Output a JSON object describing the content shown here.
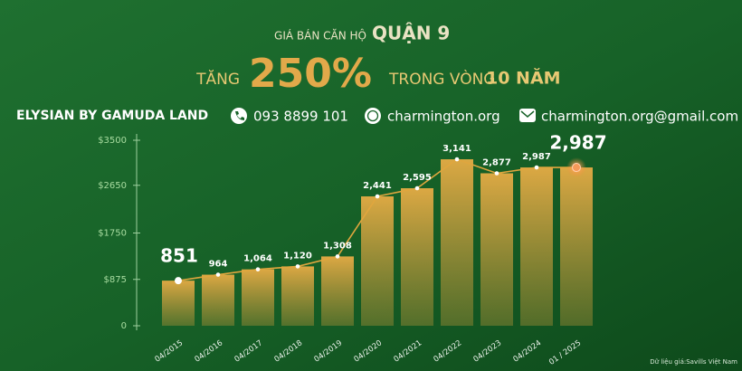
{
  "header": {
    "title": "GIÁ BÁN CĂN HỘ",
    "title_highlight": "QUẬN 9",
    "growth_prefix": "TĂNG",
    "growth": "250%",
    "growth_middle": "TRONG VÒNG",
    "growth_period": "10 NĂM"
  },
  "contact": {
    "brand": "ELYSIAN BY GAMUDA LAND",
    "phone": "093 8899 101",
    "website": "charmington.org",
    "email": "charmington.org@gmail.com"
  },
  "source": "Dữ liệu giá:Savills Việt Nam",
  "chart_data": {
    "type": "bar_line",
    "categories": [
      "04/2015",
      "04/2016",
      "04/2017",
      "04/2018",
      "04/2019",
      "04/2020",
      "04/2021",
      "04/2022",
      "04/2023",
      "04/2024",
      "01 / 2025"
    ],
    "values": [
      851,
      964,
      1064,
      1120,
      1308,
      2441,
      2595,
      3141,
      2877,
      2987,
      2987
    ],
    "value_labels": [
      "851",
      "964",
      "1,064",
      "1,120",
      "1,308",
      "2,441",
      "2,595",
      "3,141",
      "2,877",
      "2,987",
      "2,987"
    ],
    "color": "#e0a63e",
    "ylim": [
      0,
      3500
    ],
    "yticks": [
      {
        "value": 0,
        "label": "0"
      },
      {
        "value": 875,
        "label": "$875"
      },
      {
        "value": 1750,
        "label": "$1750"
      },
      {
        "value": 2650,
        "label": "$2650"
      },
      {
        "value": 3500,
        "label": "$3500"
      }
    ]
  }
}
